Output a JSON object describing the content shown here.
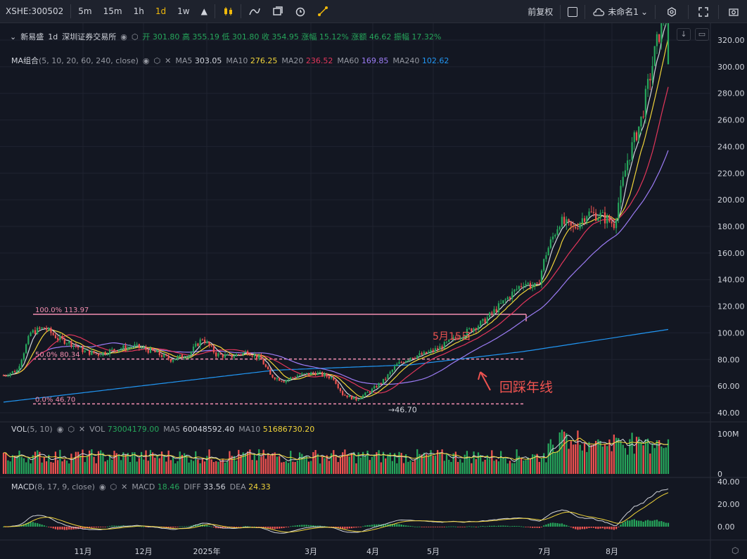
{
  "toolbar": {
    "symbol": "XSHE:300502",
    "intervals": [
      "5m",
      "15m",
      "1h",
      "1d",
      "1w"
    ],
    "active_interval": "1d",
    "adjust": "前复权",
    "layout_name": "未命名1"
  },
  "header": {
    "name": "新易盛",
    "interval": "1d",
    "exchange": "深圳证券交易所",
    "open_label": "开",
    "open": "301.80",
    "high_label": "高",
    "high": "355.19",
    "low_label": "低",
    "low": "301.80",
    "close_label": "收",
    "close": "354.95",
    "chg_label": "涨幅",
    "chg_pct": "15.12%",
    "chgamt_label": "涨额",
    "chg_amt": "46.62",
    "amp_label": "振幅",
    "amp": "17.32%"
  },
  "ma_legend": {
    "title": "MA组合",
    "params": "(5, 10, 20, 60, 240, close)",
    "items": [
      {
        "label": "MA5",
        "value": "303.05",
        "color": "#d1d4dc"
      },
      {
        "label": "MA10",
        "value": "276.25",
        "color": "#f0d43a"
      },
      {
        "label": "MA20",
        "value": "236.52",
        "color": "#e2365b"
      },
      {
        "label": "MA60",
        "value": "169.85",
        "color": "#9c7cf5"
      },
      {
        "label": "MA240",
        "value": "102.62",
        "color": "#2196f3"
      }
    ]
  },
  "vol_legend": {
    "title": "VOL",
    "params": "(5, 10)",
    "items": [
      {
        "label": "VOL",
        "value": "73004179.00",
        "color": "#26a65b"
      },
      {
        "label": "MA5",
        "value": "60048592.40",
        "color": "#d1d4dc"
      },
      {
        "label": "MA10",
        "value": "51686730.20",
        "color": "#f0d43a"
      }
    ]
  },
  "macd_legend": {
    "title": "MACD",
    "params": "(8, 17, 9, close)",
    "items": [
      {
        "label": "MACD",
        "value": "18.46",
        "color": "#26a65b"
      },
      {
        "label": "DIFF",
        "value": "33.56",
        "color": "#d1d4dc"
      },
      {
        "label": "DEA",
        "value": "24.33",
        "color": "#f0d43a"
      }
    ]
  },
  "annotations": {
    "fib100": "100.0% 113.97",
    "fib50": "50.0% 80.34",
    "fib0": "0.0% 46.70",
    "low_mark": "→46.70",
    "date_mark": "5月15日",
    "note": "回踩年线"
  },
  "chart_data": {
    "type": "candlestick",
    "price_axis": {
      "ticks": [
        "320.00",
        "300.00",
        "280.00",
        "260.00",
        "240.00",
        "220.00",
        "200.00",
        "180.00",
        "160.00",
        "140.00",
        "120.00",
        "100.00",
        "80.00",
        "60.00",
        "40.00"
      ],
      "range": [
        36,
        330
      ]
    },
    "vol_axis": {
      "ticks": [
        "100M",
        "0"
      ]
    },
    "macd_axis": {
      "ticks": [
        "40.00",
        "20.00",
        "0.00"
      ]
    },
    "x_axis": {
      "ticks": [
        "11月",
        "12月",
        "2025年",
        "3月",
        "4月",
        "5月",
        "7月",
        "8月"
      ]
    },
    "fib_levels": [
      113.97,
      80.34,
      46.7
    ],
    "price_keyframes": [
      [
        0,
        68
      ],
      [
        6,
        72
      ],
      [
        12,
        100
      ],
      [
        18,
        104
      ],
      [
        24,
        96
      ],
      [
        30,
        92
      ],
      [
        36,
        86
      ],
      [
        42,
        84
      ],
      [
        50,
        88
      ],
      [
        58,
        90
      ],
      [
        66,
        86
      ],
      [
        74,
        80
      ],
      [
        82,
        84
      ],
      [
        88,
        96
      ],
      [
        94,
        84
      ],
      [
        100,
        82
      ],
      [
        108,
        86
      ],
      [
        114,
        80
      ],
      [
        118,
        68
      ],
      [
        124,
        64
      ],
      [
        130,
        68
      ],
      [
        138,
        70
      ],
      [
        146,
        66
      ],
      [
        150,
        54
      ],
      [
        156,
        50
      ],
      [
        162,
        56
      ],
      [
        168,
        64
      ],
      [
        174,
        76
      ],
      [
        180,
        82
      ],
      [
        186,
        84
      ],
      [
        192,
        88
      ],
      [
        198,
        94
      ],
      [
        206,
        102
      ],
      [
        212,
        108
      ],
      [
        218,
        118
      ],
      [
        224,
        128
      ],
      [
        230,
        138
      ],
      [
        236,
        134
      ],
      [
        240,
        160
      ],
      [
        246,
        184
      ],
      [
        252,
        178
      ],
      [
        258,
        190
      ],
      [
        264,
        188
      ],
      [
        270,
        182
      ],
      [
        276,
        230
      ],
      [
        282,
        260
      ],
      [
        288,
        310
      ],
      [
        294,
        355
      ]
    ],
    "ma240_keyframes": [
      [
        0,
        48
      ],
      [
        60,
        60
      ],
      [
        120,
        72
      ],
      [
        180,
        76
      ],
      [
        230,
        86
      ],
      [
        294,
        102.6
      ]
    ]
  }
}
